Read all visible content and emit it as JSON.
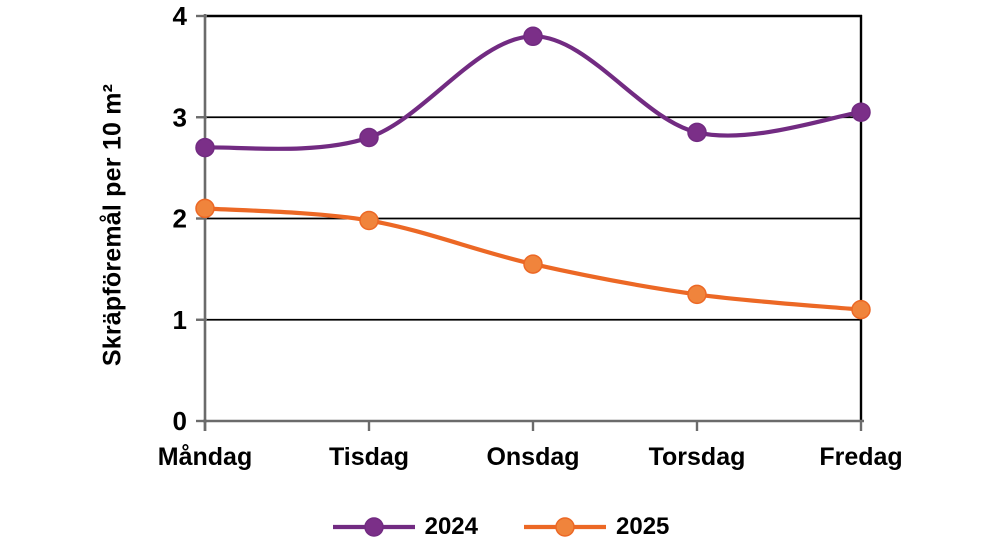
{
  "chart_data": {
    "type": "line",
    "smooth": true,
    "title": "",
    "xlabel": "",
    "ylabel": "Skräpföremål per 10 m²",
    "ylim": [
      0,
      4
    ],
    "yticks": [
      0,
      1,
      2,
      3,
      4
    ],
    "grid": "horizontal",
    "legend_position": "bottom",
    "categories": [
      "Måndag",
      "Tisdag",
      "Onsdag",
      "Torsdag",
      "Fredag"
    ],
    "series": [
      {
        "name": "2024",
        "values": [
          2.7,
          2.8,
          3.8,
          2.85,
          3.05
        ],
        "line_color": "#722b82",
        "marker_color": "#7b2f88"
      },
      {
        "name": "2025",
        "values": [
          2.1,
          1.98,
          1.55,
          1.25,
          1.1
        ],
        "line_color": "#ec6825",
        "marker_color": "#f0843c"
      }
    ],
    "style": {
      "background": "#ffffff",
      "axis_color": "#6b6b6b",
      "gridline_color": "#000000",
      "border_color": "#000000",
      "text_color": "#000000"
    }
  }
}
